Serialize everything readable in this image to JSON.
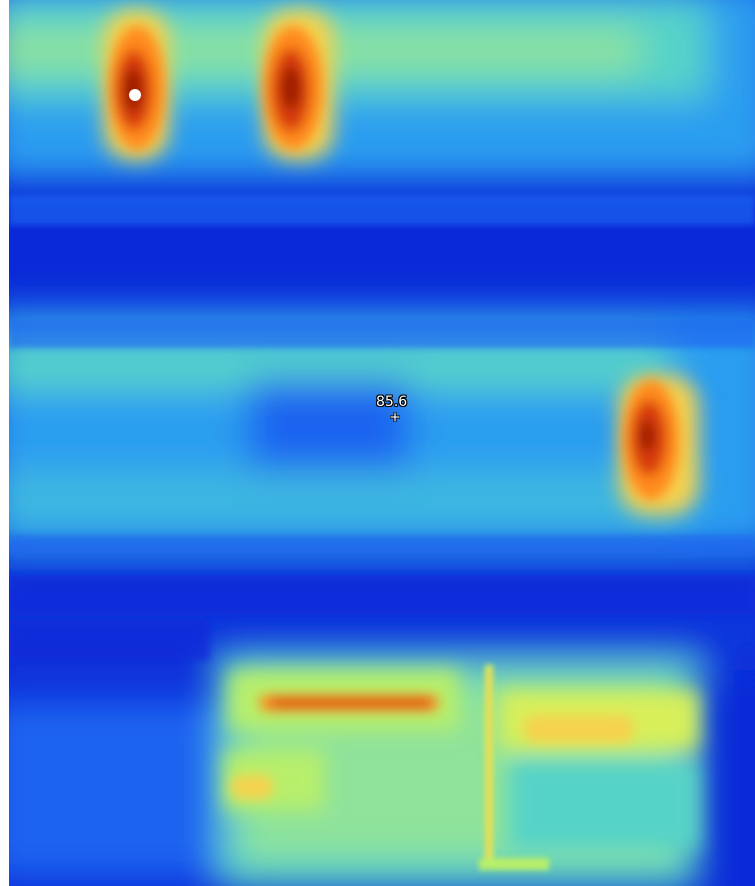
{
  "thermal_view": {
    "palette": [
      "#0a2ad8",
      "#1f63f0",
      "#2b9df0",
      "#56d3c8",
      "#b8ef6a",
      "#f6d24d",
      "#ff8a1f",
      "#d73b0b",
      "#9b1e05",
      "#ffffff"
    ],
    "spot_measurement": {
      "value": "85.6",
      "icon": "crosshair-icon"
    }
  }
}
